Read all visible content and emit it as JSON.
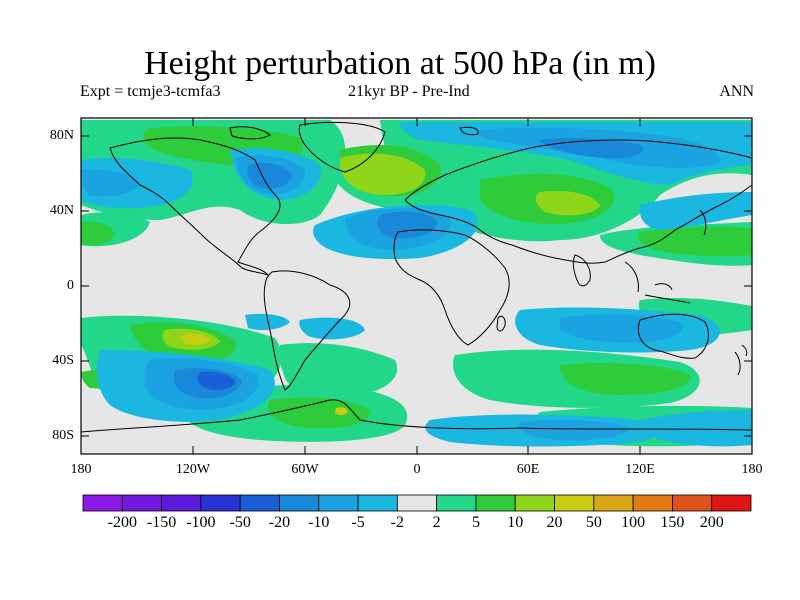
{
  "title": "Height perturbation at 500 hPa (in m)",
  "experiment_label": "Expt = tcmje3-tcmfa3",
  "period_label": "21kyr BP - Pre-Ind",
  "season_label": "ANN",
  "lat_ticks": [
    "80N",
    "40N",
    "0",
    "40S",
    "80S"
  ],
  "lon_ticks": [
    "180",
    "120W",
    "60W",
    "0",
    "60E",
    "120E",
    "180"
  ],
  "colorbar": {
    "labels": [
      "-200",
      "-150",
      "-100",
      "-50",
      "-20",
      "-10",
      "-5",
      "-2",
      "2",
      "5",
      "10",
      "20",
      "50",
      "100",
      "150",
      "200"
    ],
    "colors": [
      "#8c1ae6",
      "#7319df",
      "#5a1ad9",
      "#2a32d6",
      "#1a5fd6",
      "#1a88d9",
      "#1aa3e0",
      "#1ab8e0",
      "#e6e6e6",
      "#22d68a",
      "#2ecc3a",
      "#8fd61a",
      "#c8cc14",
      "#d9a614",
      "#e07a14",
      "#e0521a",
      "#e01414"
    ]
  }
}
